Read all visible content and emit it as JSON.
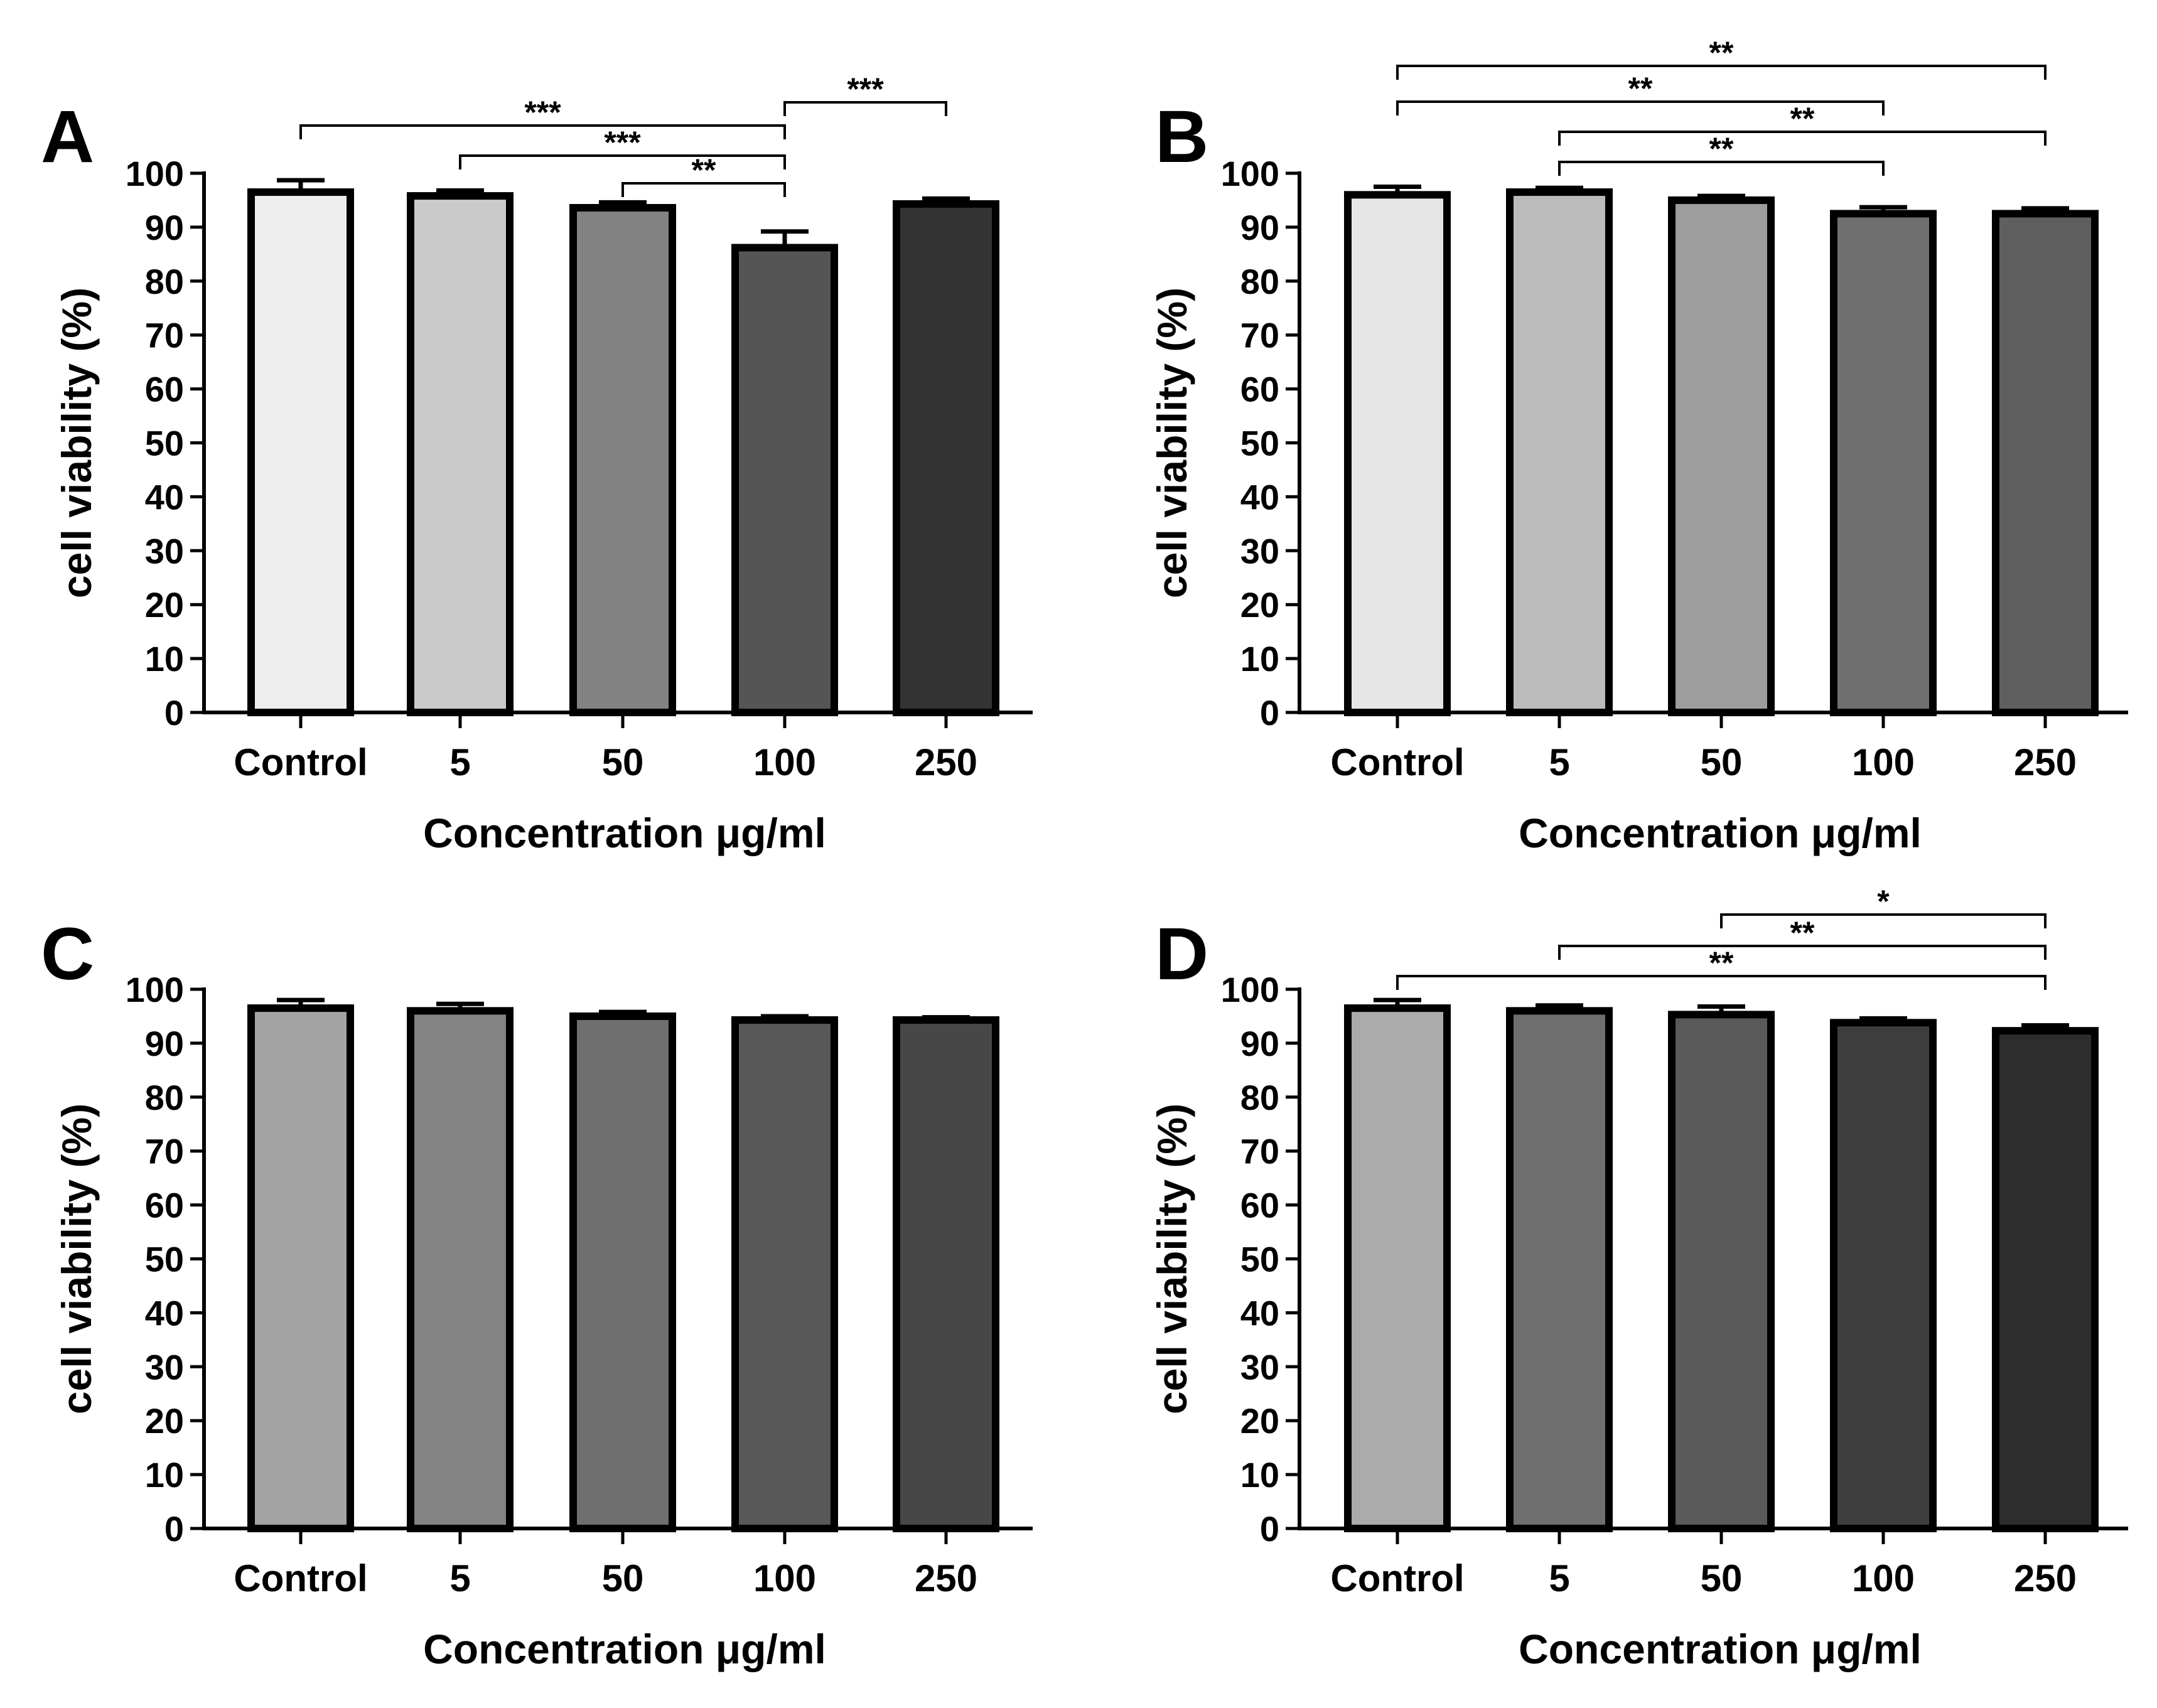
{
  "figure": {
    "panels": [
      "A",
      "B",
      "C",
      "D"
    ]
  },
  "chart_data": [
    {
      "panel_label": "A",
      "type": "bar",
      "categories": [
        "Control",
        "5",
        "50",
        "100",
        "250"
      ],
      "values": [
        96.5,
        95.8,
        93.6,
        86.2,
        94.3
      ],
      "errors": [
        2.2,
        1.0,
        1.0,
        3.0,
        1.0
      ],
      "bar_colors": [
        "#eeeeee",
        "#cacaca",
        "#828282",
        "#555555",
        "#333333"
      ],
      "xlabel": "Concentration μg/ml",
      "ylabel": "cell viability (%)",
      "ylim": [
        0,
        100
      ],
      "yticks": [
        "0",
        "10",
        "20",
        "30",
        "40",
        "50",
        "60",
        "70",
        "80",
        "90",
        "100"
      ],
      "significance": [
        {
          "from": 0,
          "to": 3,
          "label": "***"
        },
        {
          "from": 1,
          "to": 3,
          "label": "***"
        },
        {
          "from": 2,
          "to": 3,
          "label": "**"
        },
        {
          "from": 3,
          "to": 4,
          "label": "***"
        }
      ]
    },
    {
      "panel_label": "B",
      "type": "bar",
      "categories": [
        "Control",
        "5",
        "50",
        "100",
        "250"
      ],
      "values": [
        96.0,
        96.5,
        95.0,
        92.5,
        92.5
      ],
      "errors": [
        1.5,
        0.8,
        0.8,
        1.2,
        1.0
      ],
      "bar_colors": [
        "#e6e6e6",
        "#bbbbbb",
        "#9d9d9d",
        "#6f6f6f",
        "#5f5f5f"
      ],
      "xlabel": "Concentration μg/ml",
      "ylabel": "cell viability (%)",
      "ylim": [
        0,
        100
      ],
      "yticks": [
        "0",
        "10",
        "20",
        "30",
        "40",
        "50",
        "60",
        "70",
        "80",
        "90",
        "100"
      ],
      "significance": [
        {
          "from": 0,
          "to": 4,
          "label": "**"
        },
        {
          "from": 0,
          "to": 3,
          "label": "**"
        },
        {
          "from": 1,
          "to": 4,
          "label": "**"
        },
        {
          "from": 1,
          "to": 3,
          "label": "**"
        }
      ]
    },
    {
      "panel_label": "C",
      "type": "bar",
      "categories": [
        "Control",
        "5",
        "50",
        "100",
        "250"
      ],
      "values": [
        96.5,
        96.0,
        95.0,
        94.3,
        94.3
      ],
      "errors": [
        1.5,
        1.3,
        0.8,
        0.7,
        0.5
      ],
      "bar_colors": [
        "#a3a3a3",
        "#838383",
        "#6f6f6f",
        "#585858",
        "#474747"
      ],
      "xlabel": "Concentration μg/ml",
      "ylabel": "cell viability (%)",
      "ylim": [
        0,
        100
      ],
      "yticks": [
        "0",
        "10",
        "20",
        "30",
        "40",
        "50",
        "60",
        "70",
        "80",
        "90",
        "100"
      ],
      "significance": []
    },
    {
      "panel_label": "D",
      "type": "bar",
      "categories": [
        "Control",
        "5",
        "50",
        "100",
        "250"
      ],
      "values": [
        96.5,
        96.0,
        95.3,
        93.8,
        92.3
      ],
      "errors": [
        1.5,
        1.0,
        1.5,
        0.8,
        1.0
      ],
      "bar_colors": [
        "#ababab",
        "#6f6f6f",
        "#5a5a5a",
        "#3e3e3e",
        "#2d2d2d"
      ],
      "xlabel": "Concentration μg/ml",
      "ylabel": "cell viability (%)",
      "ylim": [
        0,
        100
      ],
      "yticks": [
        "0",
        "10",
        "20",
        "30",
        "40",
        "50",
        "60",
        "70",
        "80",
        "90",
        "100"
      ],
      "significance": [
        {
          "from": 2,
          "to": 4,
          "label": "*"
        },
        {
          "from": 1,
          "to": 4,
          "label": "**"
        },
        {
          "from": 0,
          "to": 4,
          "label": "**"
        }
      ]
    }
  ]
}
